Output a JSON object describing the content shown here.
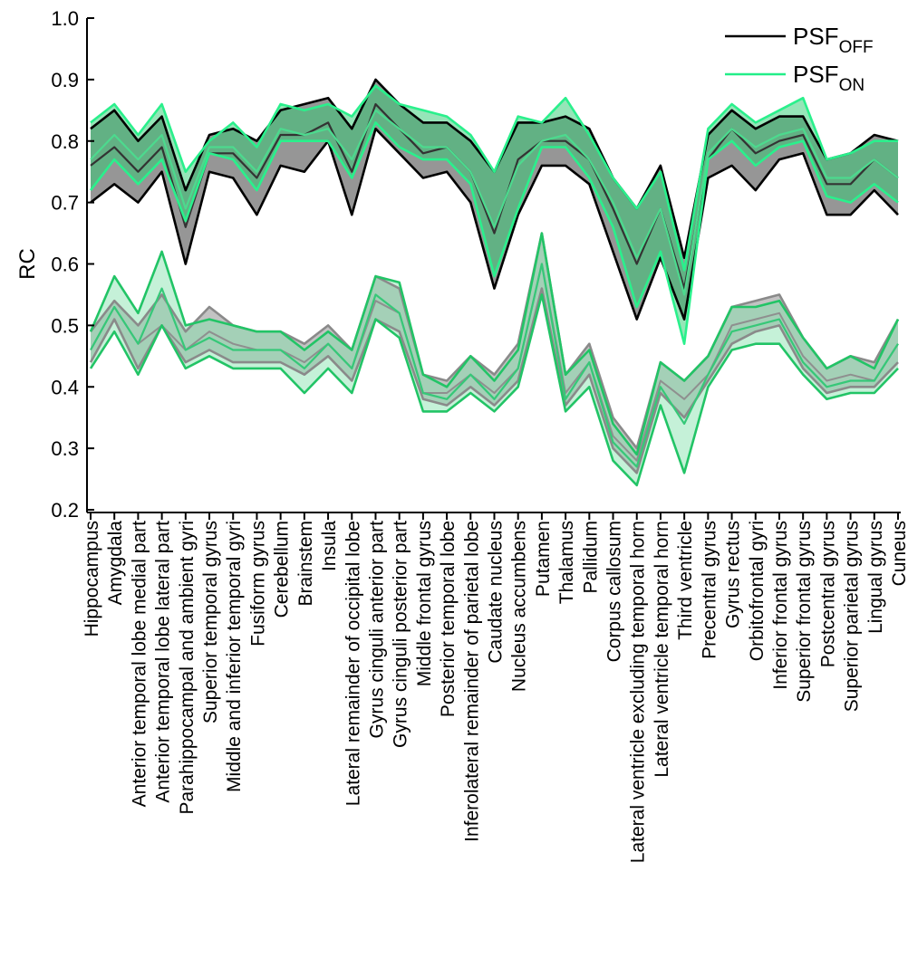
{
  "chart_data": {
    "type": "area",
    "ylabel": "RC",
    "ylim": [
      0.2,
      1.0
    ],
    "yticks": [
      "0.2",
      "0.3",
      "0.4",
      "0.5",
      "0.6",
      "0.7",
      "0.8",
      "0.9",
      "1.0"
    ],
    "grid": false,
    "legend_position": "top-right",
    "legend": [
      {
        "base": "PSF",
        "sub": "OFF",
        "color": "#000000"
      },
      {
        "base": "PSF",
        "sub": "ON",
        "color": "#22ee88"
      }
    ],
    "categories": [
      "Hippocampus",
      "Amygdala",
      "Anterior temporal lobe medial part",
      "Anterior temporal lobe lateral part",
      "Parahippocampal and ambient gyri",
      "Superior temporal gyrus",
      "Middle and inferior temporal gyri",
      "Fusiform gyrus",
      "Cerebellum",
      "Brainstem",
      "Insula",
      "Lateral remainder of occipital lobe",
      "Gyrus cinguli anterior part",
      "Gyrus cinguli posterior part",
      "Middle frontal gyrus",
      "Posterior temporal lobe",
      "Inferolateral remainder of parietal lobe",
      "Caudate nucleus",
      "Nucleus accumbens",
      "Putamen",
      "Thalamus",
      "Pallidum",
      "Corpus callosum",
      "Lateral ventricle excluding temporal horn",
      "Lateral ventricle temporal horn",
      "Third ventricle",
      "Precentral gyrus",
      "Gyrus rectus",
      "Orbitofrontal gyri",
      "Inferior frontal gyrus",
      "Superior frontal gyrus",
      "Postcentral gyrus",
      "Superior parietal gyrus",
      "Lingual gyrus",
      "Cuneus"
    ],
    "series": [
      {
        "group": "upper",
        "condition": "OFF",
        "upper": [
          0.82,
          0.85,
          0.8,
          0.84,
          0.72,
          0.81,
          0.82,
          0.8,
          0.85,
          0.86,
          0.87,
          0.82,
          0.9,
          0.86,
          0.83,
          0.83,
          0.8,
          0.75,
          0.83,
          0.83,
          0.84,
          0.82,
          0.74,
          0.69,
          0.76,
          0.61,
          0.81,
          0.85,
          0.82,
          0.84,
          0.84,
          0.77,
          0.78,
          0.81,
          0.8
        ],
        "mean": [
          0.76,
          0.79,
          0.75,
          0.79,
          0.66,
          0.78,
          0.78,
          0.74,
          0.81,
          0.81,
          0.83,
          0.75,
          0.86,
          0.82,
          0.78,
          0.79,
          0.75,
          0.65,
          0.77,
          0.8,
          0.8,
          0.77,
          0.69,
          0.6,
          0.69,
          0.56,
          0.77,
          0.82,
          0.78,
          0.8,
          0.81,
          0.73,
          0.73,
          0.77,
          0.74
        ],
        "lower": [
          0.7,
          0.73,
          0.7,
          0.75,
          0.6,
          0.75,
          0.74,
          0.68,
          0.76,
          0.75,
          0.8,
          0.68,
          0.82,
          0.78,
          0.74,
          0.75,
          0.7,
          0.56,
          0.68,
          0.76,
          0.76,
          0.73,
          0.62,
          0.51,
          0.61,
          0.51,
          0.74,
          0.76,
          0.72,
          0.77,
          0.78,
          0.68,
          0.68,
          0.72,
          0.68
        ]
      },
      {
        "group": "upper",
        "condition": "ON",
        "upper": [
          0.83,
          0.86,
          0.81,
          0.86,
          0.75,
          0.8,
          0.83,
          0.79,
          0.86,
          0.85,
          0.86,
          0.84,
          0.89,
          0.86,
          0.85,
          0.84,
          0.81,
          0.75,
          0.84,
          0.83,
          0.87,
          0.81,
          0.74,
          0.69,
          0.75,
          0.59,
          0.82,
          0.86,
          0.83,
          0.85,
          0.87,
          0.77,
          0.78,
          0.8,
          0.8
        ],
        "mean": [
          0.77,
          0.81,
          0.77,
          0.81,
          0.69,
          0.79,
          0.79,
          0.75,
          0.82,
          0.81,
          0.82,
          0.77,
          0.85,
          0.82,
          0.79,
          0.79,
          0.75,
          0.66,
          0.76,
          0.8,
          0.81,
          0.77,
          0.7,
          0.61,
          0.69,
          0.55,
          0.78,
          0.82,
          0.79,
          0.81,
          0.82,
          0.74,
          0.74,
          0.77,
          0.74
        ],
        "lower": [
          0.72,
          0.77,
          0.73,
          0.77,
          0.67,
          0.78,
          0.77,
          0.72,
          0.8,
          0.8,
          0.8,
          0.74,
          0.83,
          0.79,
          0.77,
          0.77,
          0.73,
          0.58,
          0.69,
          0.79,
          0.79,
          0.74,
          0.66,
          0.53,
          0.62,
          0.47,
          0.77,
          0.8,
          0.76,
          0.79,
          0.8,
          0.71,
          0.7,
          0.73,
          0.7
        ]
      },
      {
        "group": "lower",
        "condition": "OFF",
        "upper": [
          0.49,
          0.54,
          0.5,
          0.55,
          0.49,
          0.53,
          0.5,
          0.49,
          0.49,
          0.47,
          0.5,
          0.46,
          0.58,
          0.56,
          0.42,
          0.41,
          0.45,
          0.42,
          0.47,
          0.65,
          0.42,
          0.47,
          0.35,
          0.3,
          0.44,
          0.41,
          0.45,
          0.53,
          0.54,
          0.55,
          0.48,
          0.43,
          0.45,
          0.44,
          0.51
        ],
        "mean": [
          0.46,
          0.53,
          0.47,
          0.5,
          0.46,
          0.49,
          0.47,
          0.46,
          0.46,
          0.44,
          0.47,
          0.43,
          0.54,
          0.52,
          0.39,
          0.39,
          0.42,
          0.39,
          0.43,
          0.6,
          0.39,
          0.44,
          0.32,
          0.28,
          0.41,
          0.38,
          0.42,
          0.5,
          0.51,
          0.52,
          0.45,
          0.41,
          0.42,
          0.41,
          0.47
        ],
        "lower": [
          0.44,
          0.51,
          0.43,
          0.5,
          0.44,
          0.46,
          0.44,
          0.44,
          0.44,
          0.42,
          0.45,
          0.41,
          0.51,
          0.49,
          0.38,
          0.37,
          0.4,
          0.37,
          0.41,
          0.56,
          0.37,
          0.42,
          0.3,
          0.26,
          0.39,
          0.35,
          0.41,
          0.47,
          0.49,
          0.5,
          0.43,
          0.39,
          0.4,
          0.4,
          0.44
        ]
      },
      {
        "group": "lower",
        "condition": "ON",
        "upper": [
          0.49,
          0.58,
          0.52,
          0.62,
          0.5,
          0.51,
          0.5,
          0.49,
          0.49,
          0.46,
          0.49,
          0.46,
          0.58,
          0.57,
          0.42,
          0.4,
          0.45,
          0.41,
          0.46,
          0.65,
          0.42,
          0.46,
          0.34,
          0.29,
          0.44,
          0.41,
          0.45,
          0.53,
          0.53,
          0.54,
          0.48,
          0.43,
          0.45,
          0.43,
          0.51
        ],
        "mean": [
          0.46,
          0.53,
          0.47,
          0.56,
          0.46,
          0.48,
          0.46,
          0.46,
          0.46,
          0.43,
          0.47,
          0.43,
          0.55,
          0.52,
          0.39,
          0.38,
          0.42,
          0.38,
          0.43,
          0.6,
          0.38,
          0.44,
          0.31,
          0.27,
          0.4,
          0.34,
          0.42,
          0.49,
          0.5,
          0.51,
          0.44,
          0.4,
          0.41,
          0.41,
          0.47
        ],
        "lower": [
          0.43,
          0.49,
          0.42,
          0.5,
          0.43,
          0.45,
          0.43,
          0.43,
          0.43,
          0.39,
          0.43,
          0.39,
          0.51,
          0.48,
          0.36,
          0.36,
          0.39,
          0.36,
          0.4,
          0.55,
          0.36,
          0.4,
          0.28,
          0.24,
          0.37,
          0.26,
          0.4,
          0.46,
          0.47,
          0.47,
          0.42,
          0.38,
          0.39,
          0.39,
          0.43
        ]
      }
    ]
  }
}
